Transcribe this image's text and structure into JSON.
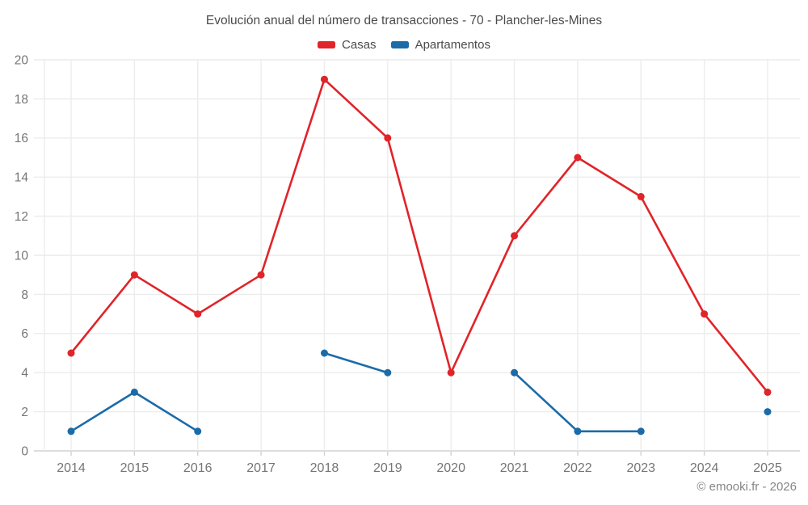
{
  "title": "Evolución anual del número de transacciones - 70 - Plancher-les-Mines",
  "watermark": "© emooki.fr - 2026",
  "chart_data": {
    "type": "line",
    "title": "Evolución anual del número de transacciones - 70 - Plancher-les-Mines",
    "categories": [
      "2014",
      "2015",
      "2016",
      "2017",
      "2018",
      "2019",
      "2020",
      "2021",
      "2022",
      "2023",
      "2024",
      "2025"
    ],
    "series": [
      {
        "name": "Casas",
        "color": "#e02429",
        "values": [
          5,
          9,
          7,
          9,
          19,
          16,
          4,
          11,
          15,
          13,
          7,
          3
        ]
      },
      {
        "name": "Apartamentos",
        "color": "#1b6ba8",
        "values": [
          1,
          3,
          1,
          null,
          5,
          4,
          null,
          4,
          1,
          1,
          null,
          2
        ]
      }
    ],
    "xlabel": "",
    "ylabel": "",
    "ylim": [
      0,
      20
    ],
    "ytick_step": 2,
    "grid": true,
    "legend_position": "top",
    "marker_radius": 4.5,
    "line_width": 2.6,
    "colors": {
      "grid": "#ececec",
      "axis_line": "#d2d2d2",
      "tick_label": "#757575",
      "title": "#4b4b4b"
    }
  }
}
